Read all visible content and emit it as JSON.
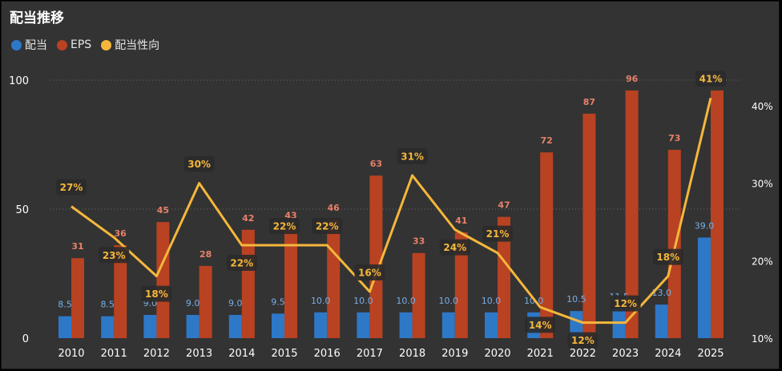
{
  "title": "配当推移",
  "legend": [
    {
      "label": "配当",
      "color": "#2e78c8"
    },
    {
      "label": "EPS",
      "color": "#b84222"
    },
    {
      "label": "配当性向",
      "color": "#f5b73b"
    }
  ],
  "chart_data": {
    "type": "bar",
    "categories": [
      "2010",
      "2011",
      "2012",
      "2013",
      "2014",
      "2015",
      "2016",
      "2017",
      "2018",
      "2019",
      "2020",
      "2021",
      "2022",
      "2023",
      "2024",
      "2025"
    ],
    "series": [
      {
        "name": "配当",
        "type": "bar",
        "axis": "left",
        "color": "#2e78c8",
        "values": [
          8.5,
          8.5,
          9.0,
          9.0,
          9.0,
          9.5,
          10.0,
          10.0,
          10.0,
          10.0,
          10.0,
          10.0,
          10.5,
          11.5,
          13.0,
          39.0
        ],
        "labels": [
          "8.5",
          "8.5",
          "9.0",
          "9.0",
          "9.0",
          "9.5",
          "10.0",
          "10.0",
          "10.0",
          "10.0",
          "10.0",
          "10.0",
          "10.5",
          "11.5",
          "13.0",
          "39.0"
        ]
      },
      {
        "name": "EPS",
        "type": "bar",
        "axis": "left",
        "color": "#b84222",
        "values": [
          31,
          36,
          45,
          28,
          42,
          43,
          46,
          63,
          33,
          41,
          47,
          72,
          87,
          96,
          73,
          96
        ],
        "labels": [
          "31",
          "36",
          "45",
          "28",
          "42",
          "43",
          "46",
          "63",
          "33",
          "41",
          "47",
          "72",
          "87",
          "96",
          "73",
          "96"
        ]
      },
      {
        "name": "配当性向",
        "type": "line",
        "axis": "right",
        "color": "#f5b73b",
        "values": [
          27,
          23,
          18,
          30,
          22,
          22,
          22,
          16,
          31,
          24,
          21,
          14,
          12,
          12,
          18,
          41
        ],
        "labels": [
          "27%",
          "23%",
          "18%",
          "30%",
          "22%",
          "22%",
          "22%",
          "16%",
          "31%",
          "24%",
          "21%",
          "14%",
          "12%",
          "12%",
          "18%",
          "41%"
        ]
      }
    ],
    "left_axis": {
      "ticks": [
        0,
        50,
        100
      ],
      "tick_labels": [
        "0",
        "50",
        "100"
      ],
      "ylim": [
        0,
        100
      ]
    },
    "right_axis": {
      "ticks": [
        10,
        20,
        30,
        40
      ],
      "tick_labels": [
        "10%",
        "20%",
        "30%",
        "40%"
      ],
      "ylim": [
        10,
        43.3
      ]
    },
    "grid": true,
    "legend_position": "top-left"
  }
}
